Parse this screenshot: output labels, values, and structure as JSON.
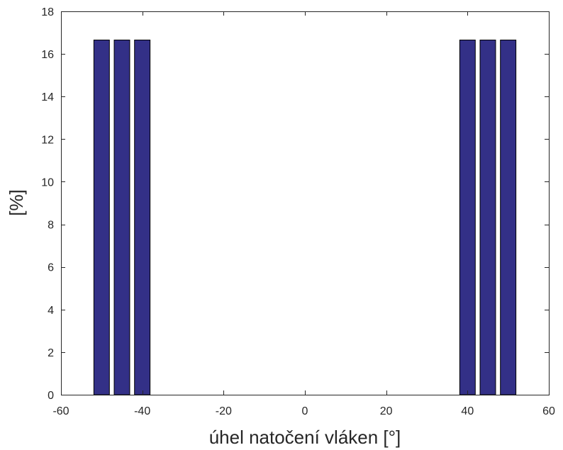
{
  "chart_data": {
    "type": "bar",
    "title": "",
    "xlabel": "úhel natočení vláken [°]",
    "ylabel": "[%]",
    "xlim": [
      -60,
      60
    ],
    "ylim": [
      0,
      18
    ],
    "xticks": [
      -60,
      -40,
      -20,
      0,
      20,
      40,
      60
    ],
    "yticks": [
      0,
      2,
      4,
      6,
      8,
      10,
      12,
      14,
      16,
      18
    ],
    "xtick_labels": [
      "-60",
      "-40",
      "-20",
      "0",
      "20",
      "40",
      "60"
    ],
    "ytick_labels": [
      "0",
      "2",
      "4",
      "6",
      "8",
      "10",
      "12",
      "14",
      "16",
      "18"
    ],
    "bar_width": 4,
    "x": [
      -50,
      -45,
      -40,
      40,
      45,
      50
    ],
    "values": [
      16.67,
      16.67,
      16.67,
      16.67,
      16.67,
      16.67
    ],
    "bar_color": "#333087",
    "grid": false,
    "legend": "none"
  }
}
